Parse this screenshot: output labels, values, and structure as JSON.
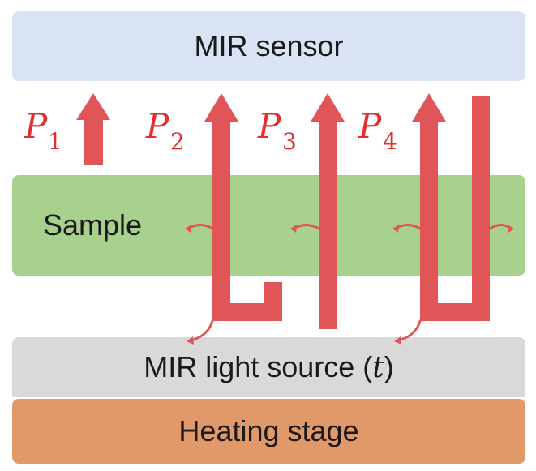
{
  "sensor": {
    "label": "MIR sensor"
  },
  "sample": {
    "label": "Sample"
  },
  "source": {
    "label": "MIR light source (",
    "var": "t",
    "close": ")"
  },
  "heater": {
    "label": "Heating stage"
  },
  "paths": [
    {
      "symbol": "P",
      "sub": "1"
    },
    {
      "symbol": "P",
      "sub": "2"
    },
    {
      "symbol": "P",
      "sub": "3"
    },
    {
      "symbol": "P",
      "sub": "4"
    }
  ],
  "colors": {
    "arrow": "#e05558",
    "label": "#e03030",
    "sensor_bg": "#dae3f3",
    "sample_bg": "#a9d18e",
    "source_bg": "#d9d9d9",
    "heater_bg": "#e2996a"
  }
}
